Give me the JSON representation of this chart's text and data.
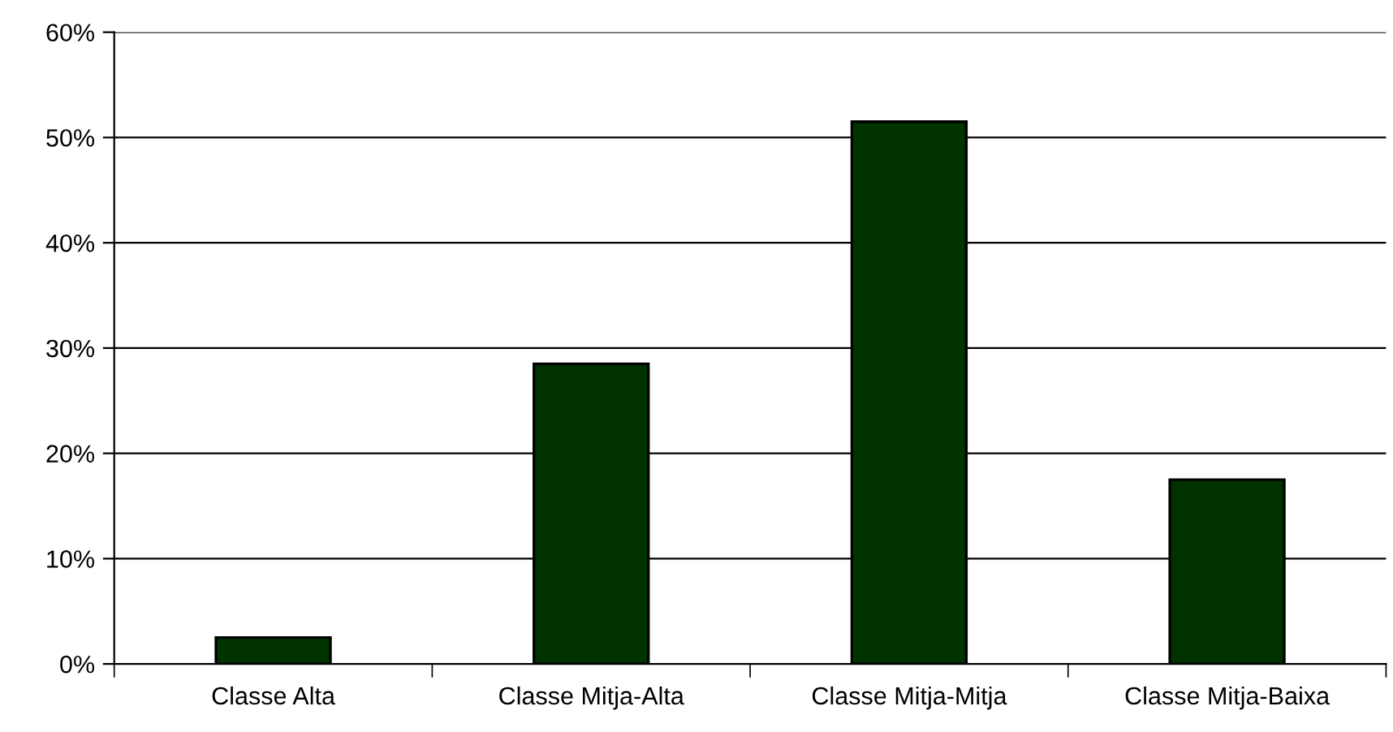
{
  "chart_data": {
    "type": "bar",
    "categories": [
      "Classe Alta",
      "Classe Mitja-Alta",
      "Classe Mitja-Mitja",
      "Classe Mitja-Baixa"
    ],
    "values": [
      2.5,
      28.5,
      51.5,
      17.5
    ],
    "color": "#003300",
    "ylim": [
      0,
      60
    ],
    "yticks": [
      {
        "value": 0,
        "label": "0%"
      },
      {
        "value": 10,
        "label": "10%"
      },
      {
        "value": 20,
        "label": "20%"
      },
      {
        "value": 30,
        "label": "30%"
      },
      {
        "value": 40,
        "label": "40%"
      },
      {
        "value": 50,
        "label": "50%"
      },
      {
        "value": 60,
        "label": "60%"
      }
    ],
    "grid": "y"
  }
}
